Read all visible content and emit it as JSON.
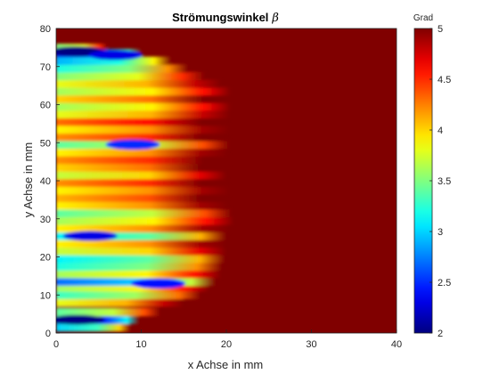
{
  "chart_data": {
    "type": "heatmap",
    "title": "Strömungswinkel",
    "title_symbol": "β",
    "xlabel": "x Achse in mm",
    "ylabel": "y Achse in mm",
    "xlim": [
      0,
      40
    ],
    "ylim": [
      0,
      80
    ],
    "x_ticks": [
      "0",
      "10",
      "20",
      "30",
      "40"
    ],
    "y_ticks": [
      "0",
      "10",
      "20",
      "30",
      "40",
      "50",
      "60",
      "70",
      "80"
    ],
    "colorbar": {
      "label": "Grad",
      "range": [
        2,
        5
      ],
      "ticks": [
        "2",
        "2.5",
        "3",
        "3.5",
        "4",
        "4.5",
        "5"
      ],
      "colormap": "jet"
    },
    "background_value": 5,
    "region_boundary": {
      "y": [
        0,
        2,
        4,
        6,
        8,
        10,
        12,
        14,
        16,
        18,
        20,
        22,
        24,
        26,
        28,
        30,
        32,
        34,
        36,
        38,
        40,
        42,
        44,
        46,
        48,
        50,
        52,
        54,
        56,
        58,
        60,
        62,
        64,
        66,
        68,
        70,
        72,
        74,
        76
      ],
      "x_extent": [
        8,
        9,
        10,
        13,
        15,
        17,
        18,
        19,
        19.5,
        19.5,
        20,
        20,
        20,
        20,
        20.5,
        21,
        20.5,
        20,
        20,
        20.5,
        20,
        20,
        20,
        20.5,
        20,
        20.5,
        20,
        20.5,
        20,
        20.5,
        20.5,
        20.5,
        20.5,
        19,
        17,
        15,
        13,
        9,
        5
      ]
    },
    "bands": [
      {
        "y": 1.5,
        "value": 3.0
      },
      {
        "y": 3.5,
        "value": 2.1
      },
      {
        "y": 5.5,
        "value": 3.4
      },
      {
        "y": 8,
        "value": 3.8
      },
      {
        "y": 10,
        "value": 3.3
      },
      {
        "y": 12,
        "value": 3.6
      },
      {
        "y": 13.5,
        "value": 2.7
      },
      {
        "y": 15.5,
        "value": 3.6
      },
      {
        "y": 17.5,
        "value": 3.2
      },
      {
        "y": 19.5,
        "value": 3.1
      },
      {
        "y": 21.5,
        "value": 3.7
      },
      {
        "y": 23.5,
        "value": 3.9
      },
      {
        "y": 25.5,
        "value": 3.1
      },
      {
        "y": 27.5,
        "value": 3.9
      },
      {
        "y": 29.5,
        "value": 3.6
      },
      {
        "y": 31.5,
        "value": 3.4
      },
      {
        "y": 33.5,
        "value": 3.9
      },
      {
        "y": 35.5,
        "value": 4.1
      },
      {
        "y": 37.5,
        "value": 3.9
      },
      {
        "y": 39.5,
        "value": 4.2
      },
      {
        "y": 41.5,
        "value": 3.7
      },
      {
        "y": 43.5,
        "value": 4.0
      },
      {
        "y": 45.5,
        "value": 4.2
      },
      {
        "y": 47.5,
        "value": 3.9
      },
      {
        "y": 49.5,
        "value": 3.4
      },
      {
        "y": 51.5,
        "value": 4.2
      },
      {
        "y": 53.5,
        "value": 3.9
      },
      {
        "y": 55.5,
        "value": 4.3
      },
      {
        "y": 57.5,
        "value": 3.8
      },
      {
        "y": 59.5,
        "value": 3.6
      },
      {
        "y": 61.5,
        "value": 4.0
      },
      {
        "y": 63.5,
        "value": 3.6
      },
      {
        "y": 65.5,
        "value": 3.8
      },
      {
        "y": 67.5,
        "value": 3.5
      },
      {
        "y": 69.5,
        "value": 3.2
      },
      {
        "y": 71.5,
        "value": 2.9
      },
      {
        "y": 73.5,
        "value": 2.3
      },
      {
        "y": 75.5,
        "value": 3.5
      }
    ],
    "blobs": [
      {
        "x": 2.5,
        "y": 74,
        "value": 2.0
      },
      {
        "x": 7,
        "y": 73,
        "value": 2.3
      },
      {
        "x": 2.5,
        "y": 3.5,
        "value": 2.0
      },
      {
        "x": 12,
        "y": 13,
        "value": 2.4
      },
      {
        "x": 4,
        "y": 25.5,
        "value": 2.3
      },
      {
        "x": 9,
        "y": 49.5,
        "value": 2.5
      }
    ]
  }
}
